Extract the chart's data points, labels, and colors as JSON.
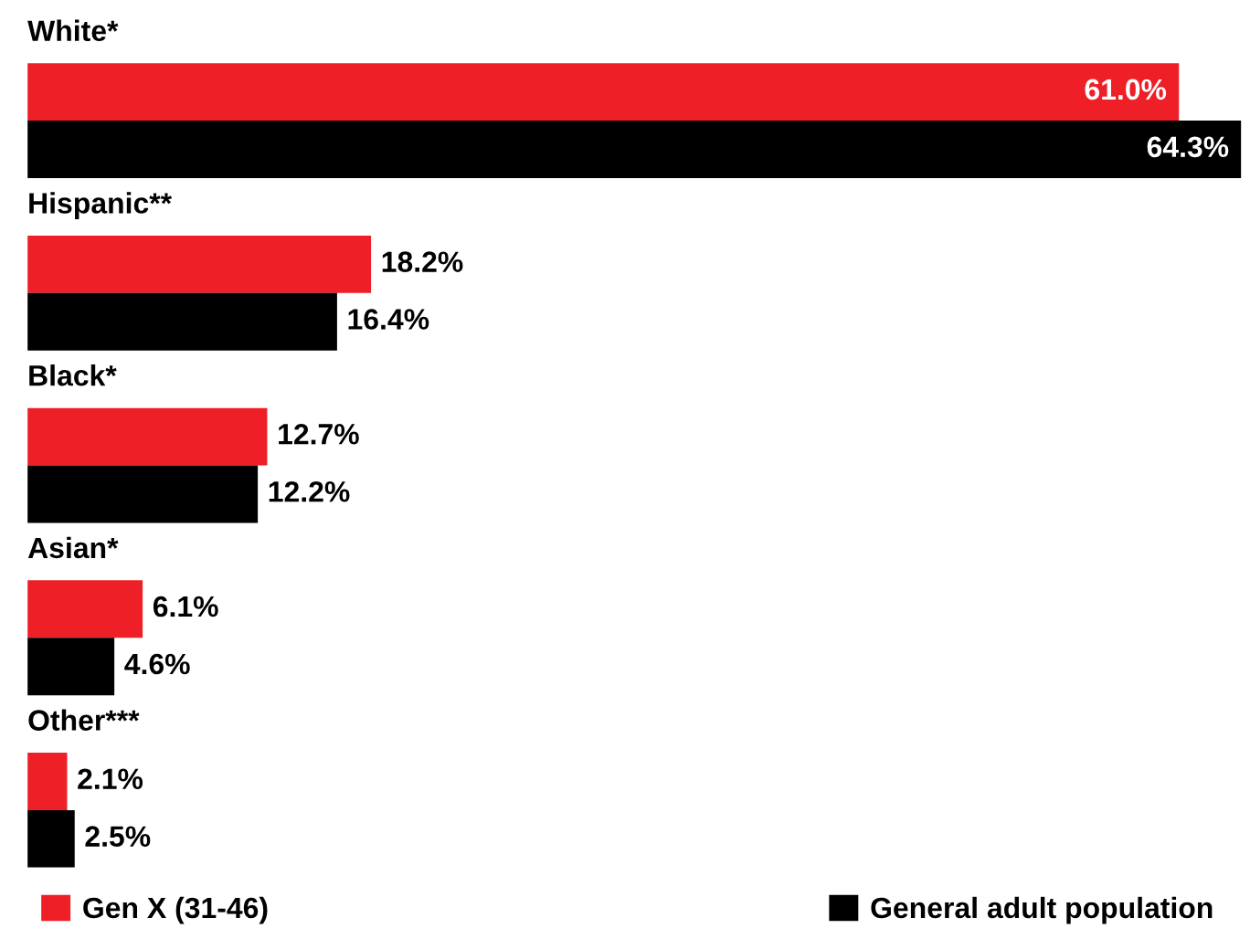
{
  "chart_data": {
    "type": "bar",
    "orientation": "horizontal",
    "categories": [
      "White*",
      "Hispanic**",
      "Black*",
      "Asian*",
      "Other***"
    ],
    "series": [
      {
        "name": "Gen X (31-46)",
        "color": "#ee1f27",
        "values": [
          61.0,
          18.2,
          12.7,
          6.1,
          2.1
        ],
        "value_labels": [
          "61.0%",
          "18.2%",
          "12.7%",
          "6.1%",
          "2.1%"
        ]
      },
      {
        "name": "General adult population",
        "color": "#000000",
        "values": [
          64.3,
          16.4,
          12.2,
          4.6,
          2.5
        ],
        "value_labels": [
          "64.3%",
          "16.4%",
          "12.2%",
          "4.6%",
          "2.5%"
        ]
      }
    ],
    "legend": "bottom"
  }
}
